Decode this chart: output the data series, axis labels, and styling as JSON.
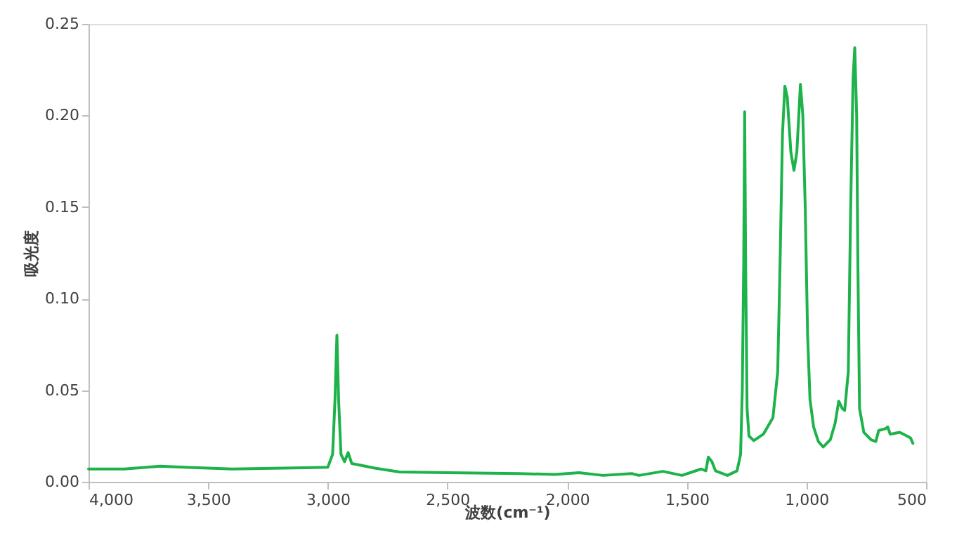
{
  "chart_data": {
    "type": "line",
    "xlabel": "波数(cm⁻¹)",
    "ylabel": "吸光度",
    "xlim": [
      4000,
      500
    ],
    "xticks": [
      {
        "value": 4000,
        "label": "4,000"
      },
      {
        "value": 3500,
        "label": "3,500"
      },
      {
        "value": 3000,
        "label": "3,000"
      },
      {
        "value": 2500,
        "label": "2,500"
      },
      {
        "value": 2000,
        "label": "2,000"
      },
      {
        "value": 1500,
        "label": "1,500"
      },
      {
        "value": 1000,
        "label": "1,000"
      },
      500
    ],
    "ylim": [
      0,
      0.25
    ],
    "yticks": [
      {
        "value": 0,
        "label": "0.00"
      },
      0.05,
      {
        "value": 0.1,
        "label": "0.10"
      },
      0.15,
      {
        "value": 0.2,
        "label": "0.20"
      },
      0.25
    ],
    "grid": false,
    "marker": "none",
    "line_style": "solid",
    "series": [
      {
        "color": "#1db34a",
        "x": [
          4000,
          3850,
          3700,
          3600,
          3400,
          3100,
          3000,
          2980,
          2970,
          2962,
          2955,
          2945,
          2930,
          2915,
          2900,
          2800,
          2700,
          2500,
          2200,
          2050,
          1950,
          1850,
          1730,
          1700,
          1600,
          1520,
          1440,
          1420,
          1410,
          1395,
          1380,
          1330,
          1290,
          1275,
          1268,
          1262,
          1258,
          1254,
          1248,
          1240,
          1220,
          1180,
          1140,
          1120,
          1110,
          1100,
          1090,
          1080,
          1065,
          1052,
          1040,
          1025,
          1015,
          1005,
          995,
          985,
          970,
          950,
          930,
          900,
          880,
          865,
          850,
          840,
          825,
          815,
          805,
          798,
          790,
          785,
          778,
          760,
          730,
          710,
          698,
          670,
          660,
          650,
          610,
          580,
          565,
          555
        ],
        "values": [
          0.007,
          0.007,
          0.0085,
          0.008,
          0.007,
          0.0077,
          0.008,
          0.015,
          0.045,
          0.08,
          0.045,
          0.015,
          0.011,
          0.016,
          0.01,
          0.0074,
          0.0054,
          0.005,
          0.0045,
          0.004,
          0.005,
          0.0035,
          0.0045,
          0.0035,
          0.0057,
          0.0035,
          0.007,
          0.006,
          0.0135,
          0.011,
          0.006,
          0.0035,
          0.006,
          0.015,
          0.05,
          0.12,
          0.202,
          0.12,
          0.04,
          0.025,
          0.0225,
          0.026,
          0.035,
          0.06,
          0.12,
          0.19,
          0.216,
          0.21,
          0.18,
          0.17,
          0.18,
          0.217,
          0.2,
          0.15,
          0.08,
          0.045,
          0.03,
          0.022,
          0.019,
          0.023,
          0.032,
          0.044,
          0.04,
          0.039,
          0.06,
          0.15,
          0.22,
          0.237,
          0.2,
          0.12,
          0.04,
          0.027,
          0.023,
          0.022,
          0.028,
          0.029,
          0.03,
          0.026,
          0.027,
          0.025,
          0.024,
          0.021
        ]
      }
    ]
  }
}
